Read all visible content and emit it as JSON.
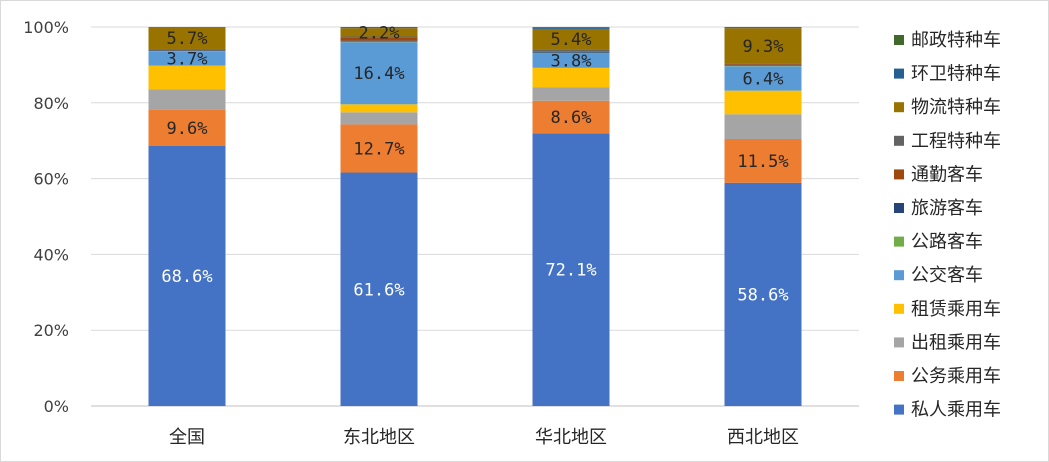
{
  "chart_data": {
    "type": "bar",
    "stacked": true,
    "percent_stacked": true,
    "title": "",
    "xlabel": "",
    "ylabel": "",
    "ylim": [
      0,
      100
    ],
    "y_ticks": [
      "0%",
      "20%",
      "40%",
      "60%",
      "80%",
      "100%"
    ],
    "grid": true,
    "legend_position": "right",
    "categories": [
      "全国",
      "东北地区",
      "华北地区",
      "西北地区"
    ],
    "series": [
      {
        "name": "私人乘用车",
        "color": "#4472C4",
        "values": [
          68.6,
          61.6,
          72.1,
          58.6
        ],
        "labels": [
          "68.6%",
          "61.6%",
          "72.1%",
          "58.6%"
        ]
      },
      {
        "name": "公务乘用车",
        "color": "#ED7D31",
        "values": [
          9.6,
          12.7,
          8.6,
          11.5
        ],
        "labels": [
          "9.6%",
          "12.7%",
          "8.6%",
          "11.5%"
        ]
      },
      {
        "name": "出租乘用车",
        "color": "#A5A5A5",
        "values": [
          5.3,
          3.2,
          3.5,
          6.5
        ],
        "labels": [
          "",
          "",
          "",
          ""
        ]
      },
      {
        "name": "租赁乘用车",
        "color": "#FFC000",
        "values": [
          6.3,
          2.1,
          5.2,
          6.2
        ],
        "labels": [
          "",
          "",
          "",
          ""
        ]
      },
      {
        "name": "公交客车",
        "color": "#5B9BD5",
        "values": [
          3.7,
          16.4,
          3.8,
          6.4
        ],
        "labels": [
          "3.7%",
          "16.4%",
          "3.8%",
          "6.4%"
        ]
      },
      {
        "name": "公路客车",
        "color": "#70AD47",
        "values": [
          0.2,
          0.2,
          0.2,
          0.2
        ],
        "labels": [
          "",
          "",
          "",
          ""
        ]
      },
      {
        "name": "旅游客车",
        "color": "#264478",
        "values": [
          0.2,
          0.2,
          0.2,
          0.2
        ],
        "labels": [
          "",
          "",
          "",
          ""
        ]
      },
      {
        "name": "通勤客车",
        "color": "#9E480E",
        "values": [
          0.2,
          0.8,
          0.2,
          0.2
        ],
        "labels": [
          "",
          "",
          "",
          ""
        ]
      },
      {
        "name": "工程特种车",
        "color": "#636363",
        "values": [
          0.1,
          0.3,
          0.5,
          0.1
        ],
        "labels": [
          "",
          "",
          "",
          ""
        ]
      },
      {
        "name": "物流特种车",
        "color": "#997300",
        "values": [
          5.7,
          2.2,
          5.4,
          9.3
        ],
        "labels": [
          "5.7%",
          "2.2%",
          "5.4%",
          "9.3%"
        ]
      },
      {
        "name": "环卫特种车",
        "color": "#255E91",
        "values": [
          0.1,
          0.2,
          0.3,
          0.2
        ],
        "labels": [
          "",
          "",
          "",
          ""
        ]
      },
      {
        "name": "邮政特种车",
        "color": "#43682B",
        "values": [
          0.0,
          0.1,
          0.2,
          0.1
        ],
        "labels": [
          "",
          "",
          "",
          ""
        ]
      }
    ]
  }
}
